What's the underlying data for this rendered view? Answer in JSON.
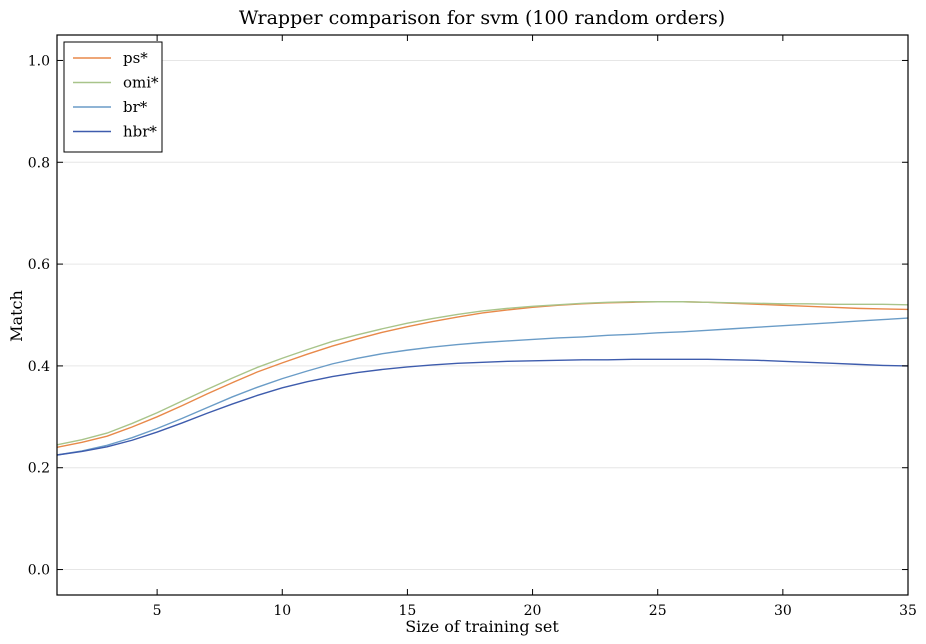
{
  "chart_data": {
    "type": "line",
    "title": "Wrapper comparison for svm (100 random orders)",
    "xlabel": "Size of training set",
    "ylabel": "Match",
    "xlim": [
      1,
      35
    ],
    "ylim": [
      -0.05,
      1.05
    ],
    "xticks": [
      5,
      10,
      15,
      20,
      25,
      30,
      35
    ],
    "yticks": [
      0.0,
      0.2,
      0.4,
      0.6,
      0.8,
      1.0
    ],
    "xtick_labels": [
      "5",
      "10",
      "15",
      "20",
      "25",
      "30",
      "35"
    ],
    "ytick_labels": [
      "0.0",
      "0.2",
      "0.4",
      "0.6",
      "0.8",
      "1.0"
    ],
    "grid": "horizontal",
    "legend_position": "top-left",
    "x": [
      1,
      2,
      3,
      4,
      5,
      6,
      7,
      8,
      9,
      10,
      11,
      12,
      13,
      14,
      15,
      16,
      17,
      18,
      19,
      20,
      21,
      22,
      23,
      24,
      25,
      26,
      27,
      28,
      29,
      30,
      31,
      32,
      33,
      34,
      35
    ],
    "series": [
      {
        "name": "ps*",
        "color": "#e8894a",
        "values": [
          0.24,
          0.25,
          0.262,
          0.28,
          0.3,
          0.322,
          0.345,
          0.367,
          0.388,
          0.406,
          0.423,
          0.439,
          0.453,
          0.466,
          0.477,
          0.487,
          0.496,
          0.504,
          0.51,
          0.515,
          0.519,
          0.522,
          0.524,
          0.525,
          0.526,
          0.526,
          0.525,
          0.523,
          0.521,
          0.519,
          0.517,
          0.515,
          0.513,
          0.512,
          0.511
        ]
      },
      {
        "name": "omi*",
        "color": "#a8c48a",
        "values": [
          0.245,
          0.255,
          0.268,
          0.287,
          0.308,
          0.331,
          0.354,
          0.376,
          0.397,
          0.415,
          0.432,
          0.448,
          0.461,
          0.473,
          0.484,
          0.493,
          0.501,
          0.508,
          0.513,
          0.517,
          0.52,
          0.523,
          0.525,
          0.526,
          0.526,
          0.526,
          0.525,
          0.524,
          0.523,
          0.522,
          0.522,
          0.521,
          0.521,
          0.521,
          0.52
        ]
      },
      {
        "name": "br*",
        "color": "#6a9cc7",
        "values": [
          0.225,
          0.233,
          0.244,
          0.259,
          0.277,
          0.297,
          0.318,
          0.339,
          0.358,
          0.375,
          0.39,
          0.404,
          0.415,
          0.424,
          0.431,
          0.437,
          0.442,
          0.446,
          0.449,
          0.452,
          0.455,
          0.457,
          0.46,
          0.462,
          0.465,
          0.467,
          0.47,
          0.473,
          0.476,
          0.479,
          0.482,
          0.485,
          0.488,
          0.491,
          0.494
        ]
      },
      {
        "name": "hbr*",
        "color": "#3e5cad",
        "values": [
          0.225,
          0.232,
          0.241,
          0.254,
          0.27,
          0.288,
          0.307,
          0.325,
          0.342,
          0.357,
          0.369,
          0.379,
          0.387,
          0.393,
          0.398,
          0.402,
          0.405,
          0.407,
          0.409,
          0.41,
          0.411,
          0.412,
          0.412,
          0.413,
          0.413,
          0.413,
          0.413,
          0.412,
          0.411,
          0.409,
          0.407,
          0.405,
          0.403,
          0.401,
          0.4
        ]
      }
    ]
  }
}
